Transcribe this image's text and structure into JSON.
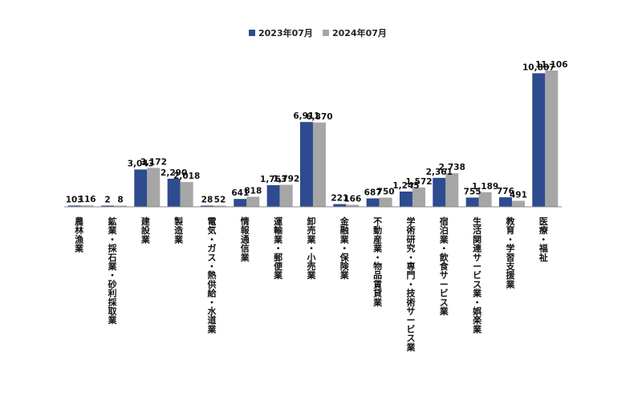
{
  "chart_data": {
    "type": "bar",
    "title": "",
    "xlabel": "",
    "ylabel": "",
    "ylim": [
      0,
      11106
    ],
    "grid": false,
    "legend_position": "top",
    "colors": {
      "series_2023": "#2e4b8f",
      "series_2024": "#a6a6a6",
      "axis": "#888888"
    },
    "categories": [
      "農林漁業",
      "鉱業・採石業・砂利採取業",
      "建設業",
      "製造業",
      "電気・ガス・熱供給・水道業",
      "情報通信業",
      "運輸業・郵便業",
      "卸売業・小売業",
      "金融業・保険業",
      "不動産業・物品賃貸業",
      "学術研究・専門・技術サービス業",
      "宿泊業・飲食サービス業",
      "生活関連サービス業・娯楽業",
      "教育・学習支援業",
      "医療・福祉"
    ],
    "series": [
      {
        "name": "2023年07月",
        "values": [
          103,
          2,
          3043,
          2290,
          28,
          641,
          1763,
          6911,
          221,
          687,
          1245,
          2361,
          755,
          776,
          10887
        ],
        "labels": [
          "103",
          "2",
          "3,043",
          "2,290",
          "28",
          "641",
          "1,763",
          "6,911",
          "221",
          "687",
          "1,245",
          "2,361",
          "755",
          "776",
          "10,887"
        ]
      },
      {
        "name": "2024年07月",
        "values": [
          116,
          8,
          3172,
          2018,
          52,
          818,
          1792,
          6870,
          166,
          750,
          1572,
          2738,
          1189,
          491,
          11106
        ],
        "labels": [
          "116",
          "8",
          "3,172",
          "2,018",
          "52",
          "818",
          "1,792",
          "6,870",
          "166",
          "750",
          "1,572",
          "2,738",
          "1,189",
          "491",
          "11,106"
        ]
      }
    ]
  }
}
